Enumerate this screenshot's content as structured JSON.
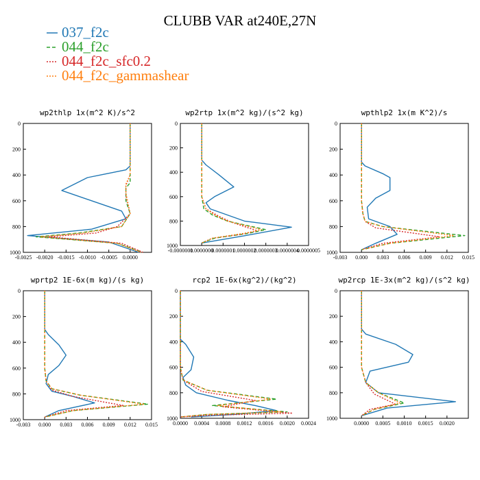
{
  "title": "CLUBB VAR at240E,27N",
  "legend": [
    {
      "name": "037_f2c",
      "color": "#1f77b4",
      "dash": "solid"
    },
    {
      "name": "044_f2c",
      "color": "#2ca02c",
      "dash": "dashed"
    },
    {
      "name": "044_f2c_sfc0.2",
      "color": "#d62728",
      "dash": "dotted"
    },
    {
      "name": "044_f2c_gammashear",
      "color": "#ff7f0e",
      "dash": "dotted"
    }
  ],
  "chart_data": [
    {
      "type": "line",
      "title": "wp2thlp  1x(m^2 K)/s^2",
      "xlim": [
        -0.0025,
        0.0005
      ],
      "ylim": [
        1000,
        0
      ],
      "xticks": [
        "-0.0025",
        "-0.0020",
        "-0.0015",
        "-0.0010",
        "-0.0005",
        "0.0000"
      ],
      "xtick_values": [
        -0.0025,
        -0.002,
        -0.0015,
        -0.001,
        -0.0005,
        0
      ],
      "yticks": [
        "0",
        "200",
        "400",
        "600",
        "800",
        "1000"
      ],
      "ytick_values": [
        0,
        200,
        400,
        600,
        800,
        1000
      ],
      "series": [
        {
          "name": "037_f2c",
          "x": [
            0,
            0,
            0,
            -0.0001,
            -0.001,
            -0.0016,
            -0.0009,
            -0.0002,
            -0.0001,
            -0.0009,
            -0.0024,
            -0.0005,
            0.0002
          ],
          "y": [
            0,
            300,
            330,
            360,
            420,
            520,
            600,
            680,
            740,
            820,
            870,
            920,
            1000
          ]
        },
        {
          "name": "044_f2c",
          "x": [
            0,
            0,
            0,
            -0.0001,
            -0.0001,
            0,
            -0.0002,
            -0.0012,
            -0.0022,
            -0.0003,
            0.0003
          ],
          "y": [
            0,
            400,
            460,
            500,
            600,
            700,
            800,
            850,
            880,
            930,
            1000
          ]
        },
        {
          "name": "044_f2c_sfc0.2",
          "x": [
            0,
            0,
            -0.0001,
            -0.0001,
            0,
            -0.0003,
            -0.0008,
            -0.0019,
            -0.0002,
            0.0003
          ],
          "y": [
            0,
            400,
            480,
            560,
            700,
            800,
            850,
            880,
            930,
            1000
          ]
        },
        {
          "name": "044_f2c_gammashear",
          "x": [
            0,
            0,
            -0.0001,
            -0.0001,
            0,
            -0.0002,
            -0.0011,
            -0.0021,
            -0.0003,
            0.00025
          ],
          "y": [
            0,
            400,
            470,
            540,
            700,
            800,
            850,
            880,
            930,
            1000
          ]
        }
      ]
    },
    {
      "type": "line",
      "title": "wp2rtp  1x(m^2 kg)/(s^2 kg)",
      "xlim": [
        -1e-07,
        5e-07
      ],
      "ylim": [
        1000,
        0
      ],
      "xticks": [
        "-0.0000001",
        "0.0000000",
        "0.0000001",
        "0.0000002",
        "0.0000003",
        "0.0000004",
        "0.0000005"
      ],
      "xtick_values": [
        -1e-07,
        0,
        1e-07,
        2e-07,
        3e-07,
        4e-07,
        5e-07
      ],
      "yticks": [
        "0",
        "200",
        "400",
        "600",
        "800",
        "1000"
      ],
      "ytick_values": [
        0,
        200,
        400,
        600,
        800,
        1000
      ],
      "series": [
        {
          "name": "037_f2c",
          "x": [
            0,
            0,
            2e-08,
            8e-08,
            1.5e-07,
            6e-08,
            2e-08,
            4e-08,
            2e-07,
            4.2e-07,
            2e-07,
            0
          ],
          "y": [
            0,
            300,
            340,
            420,
            520,
            600,
            650,
            700,
            800,
            850,
            920,
            980
          ]
        },
        {
          "name": "044_f2c",
          "x": [
            0,
            0,
            1e-08,
            5e-08,
            1.2e-07,
            3e-07,
            2.2e-07,
            6e-08,
            0
          ],
          "y": [
            0,
            600,
            700,
            750,
            800,
            870,
            900,
            940,
            980
          ]
        },
        {
          "name": "044_f2c_sfc0.2",
          "x": [
            0,
            0,
            2e-08,
            8e-08,
            1.4e-07,
            2.6e-07,
            1.8e-07,
            5e-08,
            0
          ],
          "y": [
            0,
            600,
            700,
            760,
            810,
            880,
            910,
            940,
            980
          ]
        },
        {
          "name": "044_f2c_gammashear",
          "x": [
            0,
            0,
            2e-08,
            6e-08,
            1.2e-07,
            2.8e-07,
            2e-07,
            5e-08,
            0
          ],
          "y": [
            0,
            600,
            700,
            750,
            800,
            870,
            900,
            940,
            980
          ]
        }
      ]
    },
    {
      "type": "line",
      "title": "wpthlp2  1x(m K^2)/s",
      "xlim": [
        -0.003,
        0.015
      ],
      "ylim": [
        1000,
        0
      ],
      "xticks": [
        "-0.003",
        "0.000",
        "0.003",
        "0.006",
        "0.009",
        "0.012",
        "0.015"
      ],
      "xtick_values": [
        -0.003,
        0,
        0.003,
        0.006,
        0.009,
        0.012,
        0.015
      ],
      "yticks": [
        "0",
        "200",
        "400",
        "600",
        "800",
        "1000"
      ],
      "ytick_values": [
        0,
        200,
        400,
        600,
        800,
        1000
      ],
      "series": [
        {
          "name": "037_f2c",
          "x": [
            0,
            0,
            0.0005,
            0.003,
            0.004,
            0.004,
            0.002,
            0.0008,
            0.001,
            0.004,
            0.005,
            0.002,
            0
          ],
          "y": [
            0,
            300,
            330,
            390,
            420,
            520,
            580,
            650,
            740,
            800,
            860,
            930,
            980
          ]
        },
        {
          "name": "044_f2c",
          "x": [
            0,
            0,
            0.0002,
            0.0005,
            0.003,
            0.0145,
            0.004,
            0
          ],
          "y": [
            0,
            600,
            700,
            760,
            800,
            870,
            930,
            980
          ]
        },
        {
          "name": "044_f2c_sfc0.2",
          "x": [
            0,
            0,
            0.0002,
            0.0005,
            0.002,
            0.011,
            0.003,
            0
          ],
          "y": [
            0,
            600,
            700,
            760,
            810,
            880,
            930,
            980
          ]
        },
        {
          "name": "044_f2c_gammashear",
          "x": [
            0,
            0,
            0.0002,
            0.0005,
            0.003,
            0.013,
            0.004,
            0
          ],
          "y": [
            0,
            600,
            700,
            760,
            800,
            870,
            930,
            980
          ]
        }
      ]
    },
    {
      "type": "line",
      "title": "wprtp2  1E-6x(m kg)/(s kg)",
      "xlim": [
        -0.003,
        0.015
      ],
      "ylim": [
        1000,
        0
      ],
      "xticks": [
        "-0.003",
        "0.000",
        "0.003",
        "0.006",
        "0.009",
        "0.012",
        "0.015"
      ],
      "xtick_values": [
        -0.003,
        0,
        0.003,
        0.006,
        0.009,
        0.012,
        0.015
      ],
      "yticks": [
        "0",
        "200",
        "400",
        "600",
        "800",
        "1000"
      ],
      "ytick_values": [
        0,
        200,
        400,
        600,
        800,
        1000
      ],
      "series": [
        {
          "name": "037_f2c",
          "x": [
            0,
            0,
            0.0005,
            0.002,
            0.003,
            0.002,
            0.0005,
            0.0002,
            0.001,
            0.004,
            0.007,
            0.002,
            0
          ],
          "y": [
            0,
            300,
            340,
            420,
            500,
            580,
            650,
            720,
            780,
            820,
            870,
            930,
            980
          ]
        },
        {
          "name": "044_f2c",
          "x": [
            0,
            0,
            0.0002,
            0.001,
            0.005,
            0.0145,
            0.004,
            0
          ],
          "y": [
            0,
            600,
            700,
            760,
            810,
            880,
            930,
            980
          ]
        },
        {
          "name": "044_f2c_sfc0.2",
          "x": [
            0,
            0,
            0.0002,
            0.001,
            0.004,
            0.011,
            0.003,
            0
          ],
          "y": [
            0,
            600,
            700,
            770,
            820,
            890,
            930,
            980
          ]
        },
        {
          "name": "044_f2c_gammashear",
          "x": [
            0,
            0,
            0.0002,
            0.001,
            0.005,
            0.014,
            0.004,
            0
          ],
          "y": [
            0,
            600,
            700,
            760,
            810,
            880,
            930,
            980
          ]
        }
      ]
    },
    {
      "type": "line",
      "title": "rcp2  1E-6x(kg^2)/(kg^2)",
      "xlim": [
        0,
        0.0024
      ],
      "ylim": [
        1000,
        0
      ],
      "xticks": [
        "0.0000",
        "0.0004",
        "0.0008",
        "0.0012",
        "0.0016",
        "0.0020",
        "0.0024"
      ],
      "xtick_values": [
        0,
        0.0004,
        0.0008,
        0.0012,
        0.0016,
        0.002,
        0.0024
      ],
      "yticks": [
        "0",
        "200",
        "400",
        "600",
        "800",
        "1000"
      ],
      "ytick_values": [
        0,
        200,
        400,
        600,
        800,
        1000
      ],
      "series": [
        {
          "name": "037_f2c",
          "x": [
            0,
            0,
            0.0001,
            0.00025,
            0.0002,
            5e-05,
            0.0001,
            0.0003,
            0.0009,
            0.0014,
            0.0018,
            0.001,
            0.0002
          ],
          "y": [
            0,
            380,
            420,
            520,
            620,
            680,
            740,
            800,
            860,
            900,
            940,
            970,
            990
          ]
        },
        {
          "name": "044_f2c",
          "x": [
            0,
            0,
            5e-05,
            0.0005,
            0.0018,
            0.0006,
            0.002,
            0.0005,
            0
          ],
          "y": [
            0,
            600,
            700,
            780,
            850,
            900,
            950,
            970,
            990
          ]
        },
        {
          "name": "044_f2c_sfc0.2",
          "x": [
            0,
            0,
            5e-05,
            0.0004,
            0.0014,
            0.0008,
            0.0021,
            0.0006,
            0
          ],
          "y": [
            0,
            600,
            700,
            790,
            860,
            910,
            960,
            975,
            990
          ]
        },
        {
          "name": "044_f2c_gammashear",
          "x": [
            0,
            0,
            5e-05,
            0.0005,
            0.0017,
            0.0007,
            0.0019,
            0.0005,
            0
          ],
          "y": [
            0,
            600,
            700,
            780,
            850,
            900,
            950,
            970,
            990
          ]
        }
      ]
    },
    {
      "type": "line",
      "title": "wp2rcp  1E-3x(m^2 kg)/(s^2 kg)",
      "xlim": [
        -0.0005,
        0.0025
      ],
      "ylim": [
        1000,
        0
      ],
      "xticks": [
        "0.0000",
        "0.0005",
        "0.0010",
        "0.0015",
        "0.0020"
      ],
      "xtick_values": [
        0,
        0.0005,
        0.001,
        0.0015,
        0.002
      ],
      "yticks": [
        "0",
        "200",
        "400",
        "600",
        "800",
        "1000"
      ],
      "ytick_values": [
        0,
        200,
        400,
        600,
        800,
        1000
      ],
      "series": [
        {
          "name": "037_f2c",
          "x": [
            0,
            0,
            0.0001,
            0.0008,
            0.0012,
            0.0011,
            0.0002,
            0.0001,
            0.0004,
            0.0022,
            0.0006,
            0
          ],
          "y": [
            0,
            300,
            340,
            420,
            500,
            560,
            630,
            720,
            800,
            870,
            920,
            980
          ]
        },
        {
          "name": "044_f2c",
          "x": [
            0,
            0,
            0.0001,
            0.0004,
            0.001,
            0.0003,
            0
          ],
          "y": [
            0,
            600,
            720,
            800,
            880,
            930,
            980
          ]
        },
        {
          "name": "044_f2c_sfc0.2",
          "x": [
            0,
            0,
            0.0001,
            0.0003,
            0.0008,
            0.0002,
            0
          ],
          "y": [
            0,
            600,
            720,
            810,
            890,
            930,
            980
          ]
        },
        {
          "name": "044_f2c_gammashear",
          "x": [
            0,
            0,
            0.0001,
            0.0004,
            0.0009,
            0.0003,
            0
          ],
          "y": [
            0,
            600,
            720,
            800,
            880,
            930,
            980
          ]
        }
      ]
    }
  ]
}
